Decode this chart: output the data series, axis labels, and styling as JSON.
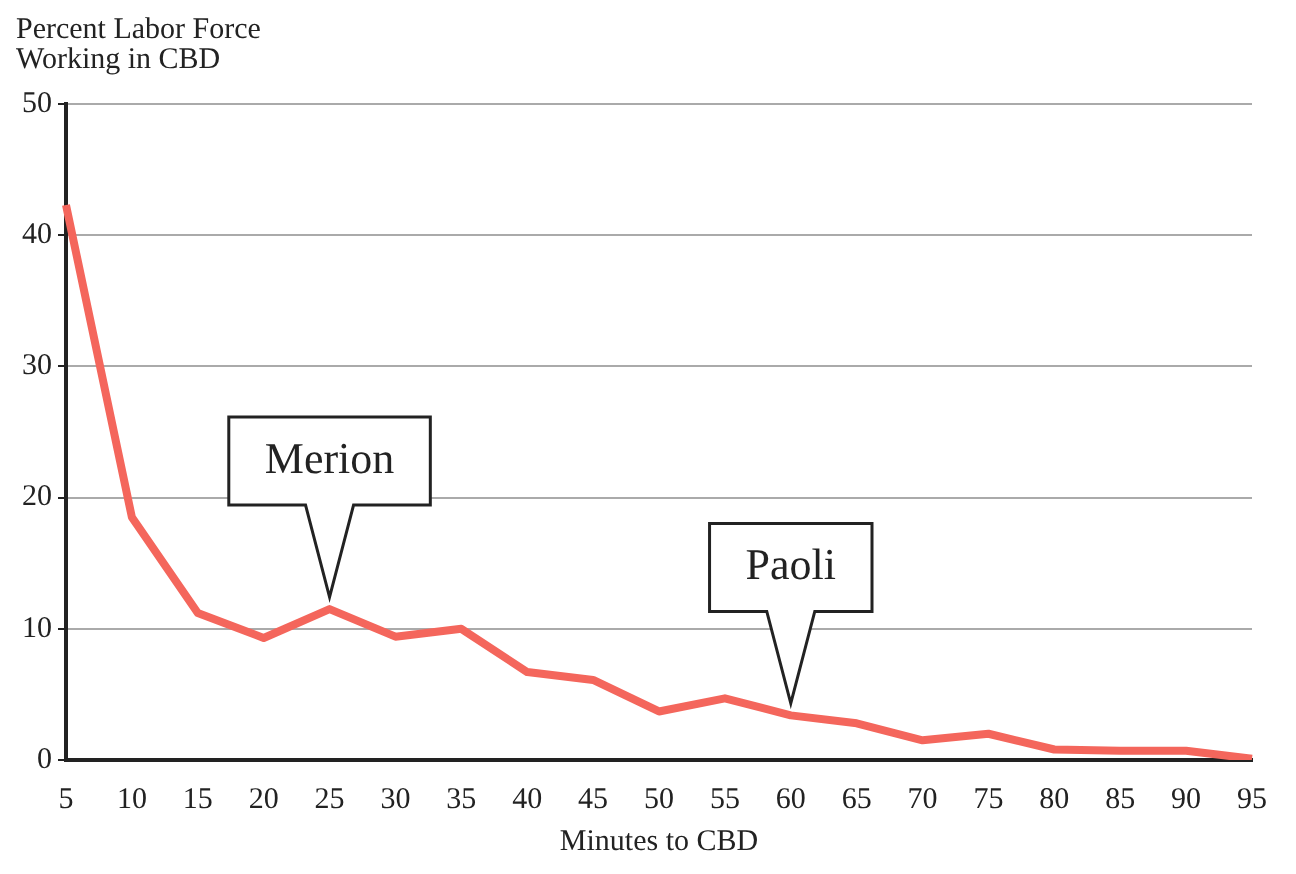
{
  "chart_data": {
    "type": "line",
    "ylabel": "Percent Labor Force\nWorking in CBD",
    "xlabel": "Minutes to CBD",
    "categories": [
      "5",
      "10",
      "15",
      "20",
      "25",
      "30",
      "35",
      "40",
      "45",
      "50",
      "55",
      "60",
      "65",
      "70",
      "75",
      "80",
      "85",
      "90",
      "95"
    ],
    "series": [
      {
        "color": "#f4665c",
        "values": [
          42.3,
          18.5,
          11.2,
          9.3,
          11.5,
          9.4,
          10,
          6.7,
          6.1,
          3.7,
          4.7,
          3.4,
          2.8,
          1.5,
          2,
          0.8,
          0.7,
          0.7,
          0.1
        ]
      }
    ],
    "ylim": [
      0,
      50
    ],
    "yticks": [
      0,
      10,
      20,
      30,
      40,
      50
    ],
    "grid": "y",
    "marker": "none",
    "line_style": "solid",
    "annotations": [
      {
        "text": "Merion",
        "x": "25",
        "y": 11.5
      },
      {
        "text": "Paoli",
        "x": "60",
        "y": 3.4
      }
    ]
  }
}
